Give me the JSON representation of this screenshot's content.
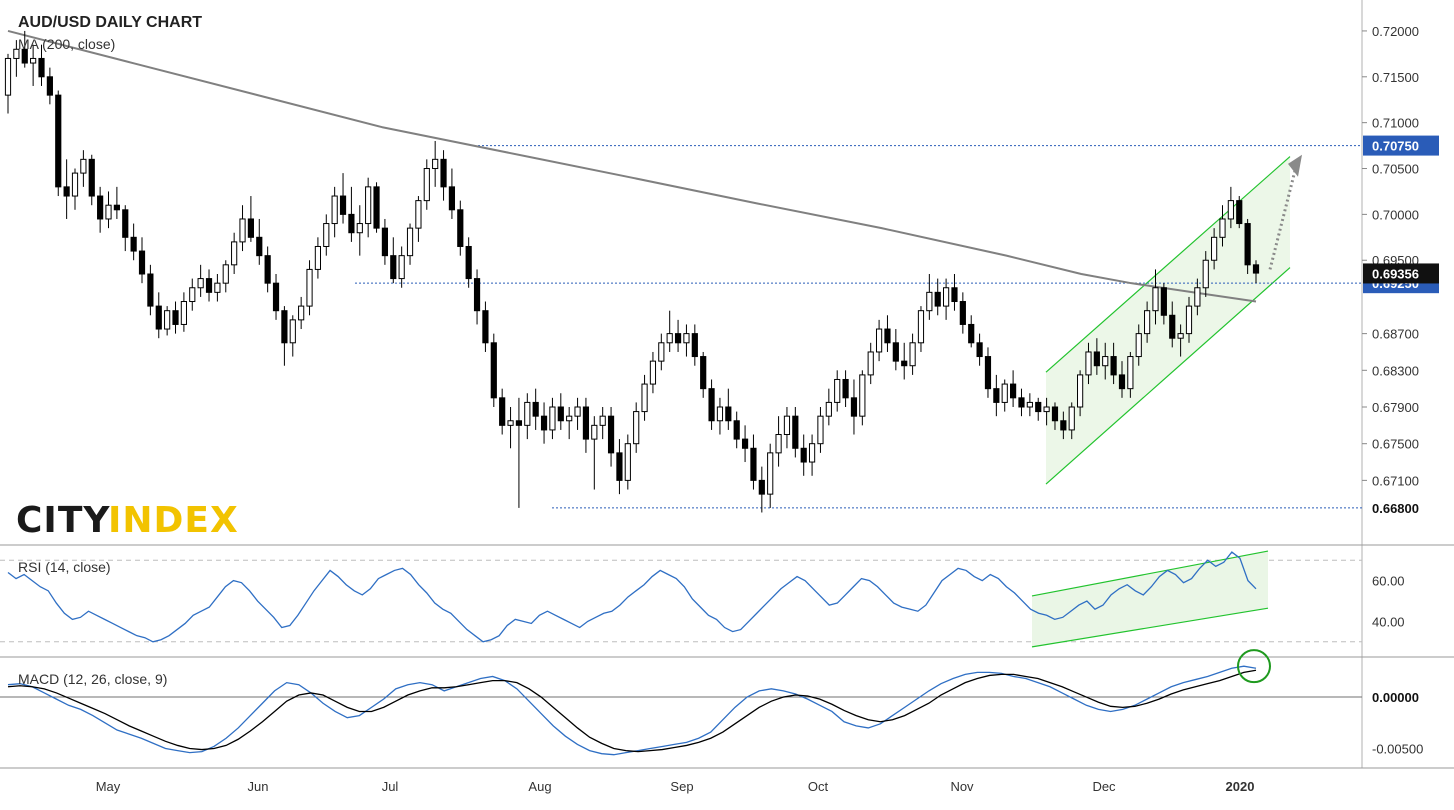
{
  "chart_data": {
    "type": "candlestick",
    "title": "AUD/USD DAILY CHART",
    "ma_label": "MA (200, close)",
    "rsi_label": "RSI (14, close)",
    "macd_label": "MACD (12, 26, close, 9)",
    "brand": {
      "part1": "CITY",
      "part2": "INDEX"
    },
    "x_ticks": [
      "May",
      "Jun",
      "Jul",
      "Aug",
      "Sep",
      "Oct",
      "Nov",
      "Dec",
      "2020"
    ],
    "price_axis": {
      "range": [
        0.6645,
        0.7225
      ],
      "ticks": [
        "0.72000",
        "0.71500",
        "0.71000",
        "0.70500",
        "0.70000",
        "0.69500",
        "0.68700",
        "0.68300",
        "0.67900",
        "0.67500",
        "0.67100"
      ],
      "levels": [
        {
          "label": "0.70750",
          "value": 0.7075
        },
        {
          "label": "0.69250",
          "value": 0.6925
        },
        {
          "label": "0.66800",
          "value": 0.668
        }
      ],
      "last_price": {
        "label": "0.69356",
        "value": 0.69356
      }
    },
    "rsi_axis": {
      "range": [
        25,
        76
      ],
      "ticks": [
        "60.00",
        "40.00"
      ],
      "bands": [
        70,
        30
      ]
    },
    "macd_axis": {
      "range": [
        -0.0066,
        0.0036
      ],
      "ticks": [
        "0.00000",
        "-0.00500"
      ]
    },
    "colors": {
      "candle_up": "#ffffff",
      "candle_down": "#000000",
      "ma": "#808080",
      "rsi": "#2f6fc4",
      "macd": "#2f6fc4",
      "signal": "#000000",
      "level": "#2a5cb8",
      "channel": "#22c32e",
      "channel_fill": "#eaf6e6",
      "badge_blue": "#2a5cb8",
      "brand_yellow": "#f2c300"
    },
    "candles_xy": [
      [
        0.713,
        0.7175,
        0.711,
        0.717
      ],
      [
        0.717,
        0.719,
        0.715,
        0.718
      ],
      [
        0.718,
        0.72,
        0.716,
        0.7165
      ],
      [
        0.7165,
        0.7185,
        0.714,
        0.717
      ],
      [
        0.717,
        0.7185,
        0.714,
        0.715
      ],
      [
        0.715,
        0.716,
        0.712,
        0.713
      ],
      [
        0.713,
        0.7135,
        0.702,
        0.703
      ],
      [
        0.703,
        0.706,
        0.6995,
        0.702
      ],
      [
        0.702,
        0.705,
        0.7005,
        0.7045
      ],
      [
        0.7045,
        0.707,
        0.703,
        0.706
      ],
      [
        0.706,
        0.7065,
        0.701,
        0.702
      ],
      [
        0.702,
        0.703,
        0.698,
        0.6995
      ],
      [
        0.6995,
        0.7025,
        0.6985,
        0.701
      ],
      [
        0.701,
        0.703,
        0.6995,
        0.7005
      ],
      [
        0.7005,
        0.701,
        0.696,
        0.6975
      ],
      [
        0.6975,
        0.699,
        0.695,
        0.696
      ],
      [
        0.696,
        0.6975,
        0.6925,
        0.6935
      ],
      [
        0.6935,
        0.6945,
        0.689,
        0.69
      ],
      [
        0.69,
        0.6915,
        0.6865,
        0.6875
      ],
      [
        0.6875,
        0.69,
        0.6868,
        0.6895
      ],
      [
        0.6895,
        0.6905,
        0.687,
        0.688
      ],
      [
        0.688,
        0.6915,
        0.6872,
        0.6905
      ],
      [
        0.6905,
        0.693,
        0.6895,
        0.692
      ],
      [
        0.692,
        0.6945,
        0.691,
        0.693
      ],
      [
        0.693,
        0.694,
        0.6905,
        0.6915
      ],
      [
        0.6915,
        0.6935,
        0.6905,
        0.6925
      ],
      [
        0.6925,
        0.695,
        0.6915,
        0.6945
      ],
      [
        0.6945,
        0.698,
        0.6935,
        0.697
      ],
      [
        0.697,
        0.701,
        0.696,
        0.6995
      ],
      [
        0.6995,
        0.702,
        0.697,
        0.6975
      ],
      [
        0.6975,
        0.6995,
        0.6945,
        0.6955
      ],
      [
        0.6955,
        0.6965,
        0.6915,
        0.6925
      ],
      [
        0.6925,
        0.6935,
        0.6885,
        0.6895
      ],
      [
        0.6895,
        0.69,
        0.6835,
        0.686
      ],
      [
        0.686,
        0.689,
        0.6845,
        0.6885
      ],
      [
        0.6885,
        0.691,
        0.6875,
        0.69
      ],
      [
        0.69,
        0.695,
        0.689,
        0.694
      ],
      [
        0.694,
        0.6975,
        0.693,
        0.6965
      ],
      [
        0.6965,
        0.7,
        0.6955,
        0.699
      ],
      [
        0.699,
        0.703,
        0.6975,
        0.702
      ],
      [
        0.702,
        0.7045,
        0.699,
        0.7
      ],
      [
        0.7,
        0.703,
        0.697,
        0.698
      ],
      [
        0.698,
        0.701,
        0.6955,
        0.699
      ],
      [
        0.699,
        0.704,
        0.6975,
        0.703
      ],
      [
        0.703,
        0.7035,
        0.698,
        0.6985
      ],
      [
        0.6985,
        0.6995,
        0.6945,
        0.6955
      ],
      [
        0.6955,
        0.6975,
        0.6925,
        0.693
      ],
      [
        0.693,
        0.6965,
        0.692,
        0.6955
      ],
      [
        0.6955,
        0.699,
        0.6945,
        0.6985
      ],
      [
        0.6985,
        0.702,
        0.697,
        0.7015
      ],
      [
        0.7015,
        0.706,
        0.7005,
        0.705
      ],
      [
        0.705,
        0.708,
        0.703,
        0.706
      ],
      [
        0.706,
        0.707,
        0.7015,
        0.703
      ],
      [
        0.703,
        0.705,
        0.6995,
        0.7005
      ],
      [
        0.7005,
        0.7015,
        0.6955,
        0.6965
      ],
      [
        0.6965,
        0.6975,
        0.692,
        0.693
      ],
      [
        0.693,
        0.694,
        0.688,
        0.6895
      ],
      [
        0.6895,
        0.6905,
        0.685,
        0.686
      ],
      [
        0.686,
        0.687,
        0.679,
        0.68
      ],
      [
        0.68,
        0.681,
        0.676,
        0.677
      ],
      [
        0.677,
        0.679,
        0.6745,
        0.6775
      ],
      [
        0.6775,
        0.68,
        0.668,
        0.677
      ],
      [
        0.677,
        0.6805,
        0.6755,
        0.6795
      ],
      [
        0.6795,
        0.681,
        0.6765,
        0.678
      ],
      [
        0.678,
        0.6795,
        0.675,
        0.6765
      ],
      [
        0.6765,
        0.68,
        0.6755,
        0.679
      ],
      [
        0.679,
        0.6805,
        0.6765,
        0.6775
      ],
      [
        0.6775,
        0.679,
        0.6755,
        0.678
      ],
      [
        0.678,
        0.68,
        0.6765,
        0.679
      ],
      [
        0.679,
        0.68,
        0.674,
        0.6755
      ],
      [
        0.6755,
        0.678,
        0.67,
        0.677
      ],
      [
        0.677,
        0.679,
        0.6755,
        0.678
      ],
      [
        0.678,
        0.679,
        0.6725,
        0.674
      ],
      [
        0.674,
        0.6755,
        0.6695,
        0.671
      ],
      [
        0.671,
        0.676,
        0.67,
        0.675
      ],
      [
        0.675,
        0.6795,
        0.674,
        0.6785
      ],
      [
        0.6785,
        0.6825,
        0.6775,
        0.6815
      ],
      [
        0.6815,
        0.685,
        0.6805,
        0.684
      ],
      [
        0.684,
        0.687,
        0.683,
        0.686
      ],
      [
        0.686,
        0.6895,
        0.685,
        0.687
      ],
      [
        0.687,
        0.6885,
        0.685,
        0.686
      ],
      [
        0.686,
        0.688,
        0.6845,
        0.687
      ],
      [
        0.687,
        0.688,
        0.6835,
        0.6845
      ],
      [
        0.6845,
        0.685,
        0.68,
        0.681
      ],
      [
        0.681,
        0.682,
        0.6765,
        0.6775
      ],
      [
        0.6775,
        0.68,
        0.676,
        0.679
      ],
      [
        0.679,
        0.681,
        0.6765,
        0.6775
      ],
      [
        0.6775,
        0.6785,
        0.6745,
        0.6755
      ],
      [
        0.6755,
        0.677,
        0.673,
        0.6745
      ],
      [
        0.6745,
        0.676,
        0.67,
        0.671
      ],
      [
        0.671,
        0.6725,
        0.6675,
        0.6695
      ],
      [
        0.6695,
        0.675,
        0.668,
        0.674
      ],
      [
        0.674,
        0.678,
        0.6725,
        0.676
      ],
      [
        0.676,
        0.679,
        0.6745,
        0.678
      ],
      [
        0.678,
        0.679,
        0.6735,
        0.6745
      ],
      [
        0.6745,
        0.676,
        0.6715,
        0.673
      ],
      [
        0.673,
        0.676,
        0.6715,
        0.675
      ],
      [
        0.675,
        0.679,
        0.674,
        0.678
      ],
      [
        0.678,
        0.681,
        0.677,
        0.6795
      ],
      [
        0.6795,
        0.683,
        0.6785,
        0.682
      ],
      [
        0.682,
        0.683,
        0.679,
        0.68
      ],
      [
        0.68,
        0.682,
        0.676,
        0.678
      ],
      [
        0.678,
        0.683,
        0.677,
        0.6825
      ],
      [
        0.6825,
        0.686,
        0.6815,
        0.685
      ],
      [
        0.685,
        0.6885,
        0.684,
        0.6875
      ],
      [
        0.6875,
        0.689,
        0.685,
        0.686
      ],
      [
        0.686,
        0.6875,
        0.683,
        0.684
      ],
      [
        0.684,
        0.686,
        0.682,
        0.6835
      ],
      [
        0.6835,
        0.687,
        0.6825,
        0.686
      ],
      [
        0.686,
        0.69,
        0.685,
        0.6895
      ],
      [
        0.6895,
        0.6935,
        0.6885,
        0.6915
      ],
      [
        0.6915,
        0.693,
        0.689,
        0.69
      ],
      [
        0.69,
        0.693,
        0.6885,
        0.692
      ],
      [
        0.692,
        0.6935,
        0.6895,
        0.6905
      ],
      [
        0.6905,
        0.6915,
        0.687,
        0.688
      ],
      [
        0.688,
        0.689,
        0.6855,
        0.686
      ],
      [
        0.686,
        0.687,
        0.6835,
        0.6845
      ],
      [
        0.6845,
        0.6855,
        0.68,
        0.681
      ],
      [
        0.681,
        0.6825,
        0.678,
        0.6795
      ],
      [
        0.6795,
        0.682,
        0.6785,
        0.6815
      ],
      [
        0.6815,
        0.683,
        0.679,
        0.68
      ],
      [
        0.68,
        0.681,
        0.678,
        0.679
      ],
      [
        0.679,
        0.6805,
        0.678,
        0.6795
      ],
      [
        0.6795,
        0.68,
        0.6775,
        0.6785
      ],
      [
        0.6785,
        0.68,
        0.677,
        0.679
      ],
      [
        0.679,
        0.6795,
        0.6765,
        0.6775
      ],
      [
        0.6775,
        0.6785,
        0.6755,
        0.6765
      ],
      [
        0.6765,
        0.6795,
        0.6755,
        0.679
      ],
      [
        0.679,
        0.683,
        0.678,
        0.6825
      ],
      [
        0.6825,
        0.686,
        0.6815,
        0.685
      ],
      [
        0.685,
        0.6865,
        0.6825,
        0.6835
      ],
      [
        0.6835,
        0.686,
        0.682,
        0.6845
      ],
      [
        0.6845,
        0.686,
        0.6815,
        0.6825
      ],
      [
        0.6825,
        0.684,
        0.68,
        0.681
      ],
      [
        0.681,
        0.685,
        0.68,
        0.6845
      ],
      [
        0.6845,
        0.688,
        0.6835,
        0.687
      ],
      [
        0.687,
        0.6905,
        0.686,
        0.6895
      ],
      [
        0.6895,
        0.694,
        0.688,
        0.692
      ],
      [
        0.692,
        0.6925,
        0.688,
        0.689
      ],
      [
        0.689,
        0.6905,
        0.6855,
        0.6865
      ],
      [
        0.6865,
        0.688,
        0.6845,
        0.687
      ],
      [
        0.687,
        0.691,
        0.686,
        0.69
      ],
      [
        0.69,
        0.693,
        0.689,
        0.692
      ],
      [
        0.692,
        0.696,
        0.691,
        0.695
      ],
      [
        0.695,
        0.6985,
        0.694,
        0.6975
      ],
      [
        0.6975,
        0.701,
        0.6965,
        0.6995
      ],
      [
        0.6995,
        0.703,
        0.6985,
        0.7015
      ],
      [
        0.7015,
        0.702,
        0.6985,
        0.699
      ],
      [
        0.699,
        0.6995,
        0.6935,
        0.6945
      ],
      [
        0.6945,
        0.695,
        0.6925,
        0.6936
      ]
    ],
    "ma200": [
      [
        0.0,
        0.72
      ],
      [
        0.1,
        0.7165
      ],
      [
        0.2,
        0.713
      ],
      [
        0.3,
        0.7095
      ],
      [
        0.42,
        0.7062
      ],
      [
        0.5,
        0.704
      ],
      [
        0.6,
        0.7012
      ],
      [
        0.7,
        0.6985
      ],
      [
        0.8,
        0.6955
      ],
      [
        0.86,
        0.6935
      ],
      [
        0.9,
        0.6925
      ],
      [
        0.95,
        0.6915
      ],
      [
        1.0,
        0.6905
      ]
    ],
    "rsi": [
      64,
      61,
      63,
      60,
      57,
      55,
      49,
      44,
      41,
      42,
      45,
      43,
      41,
      39,
      37,
      35,
      33,
      32,
      30,
      31,
      33,
      36,
      39,
      43,
      45,
      47,
      52,
      57,
      60,
      59,
      55,
      50,
      46,
      42,
      37,
      38,
      43,
      49,
      55,
      60,
      65,
      62,
      58,
      55,
      53,
      56,
      61,
      63,
      65,
      66,
      63,
      58,
      54,
      49,
      46,
      44,
      40,
      36,
      33,
      30,
      31,
      33,
      38,
      41,
      40,
      39,
      43,
      45,
      43,
      41,
      39,
      37,
      40,
      42,
      44,
      45,
      48,
      52,
      55,
      58,
      62,
      65,
      63,
      61,
      57,
      51,
      47,
      43,
      41,
      37,
      35,
      36,
      40,
      44,
      48,
      52,
      56,
      59,
      62,
      60,
      56,
      52,
      48,
      49,
      53,
      57,
      61,
      60,
      57,
      53,
      49,
      47,
      46,
      45,
      48,
      54,
      60,
      63,
      66,
      65,
      62,
      60,
      63,
      61,
      57,
      54,
      50,
      46,
      44,
      43,
      41,
      42,
      45,
      48,
      50,
      46,
      48,
      53,
      56,
      58,
      55,
      53,
      57,
      62,
      65,
      63,
      59,
      61,
      66,
      70,
      67,
      69,
      74,
      71,
      60,
      56
    ],
    "macd": [
      0.0012,
      0.0013,
      0.001,
      0.0004,
      -0.0002,
      -0.0008,
      -0.0012,
      -0.0018,
      -0.0025,
      -0.0032,
      -0.0036,
      -0.004,
      -0.0045,
      -0.005,
      -0.0052,
      -0.0054,
      -0.0053,
      -0.0048,
      -0.004,
      -0.003,
      -0.0018,
      -0.0006,
      0.0006,
      0.0014,
      0.0012,
      0.0004,
      -0.0006,
      -0.0014,
      -0.002,
      -0.0018,
      -0.001,
      -0.0002,
      0.0008,
      0.0012,
      0.0014,
      0.0012,
      0.0006,
      0.001,
      0.0014,
      0.0018,
      0.002,
      0.0016,
      0.0008,
      -0.0004,
      -0.0016,
      -0.0028,
      -0.0038,
      -0.0046,
      -0.0052,
      -0.0055,
      -0.0056,
      -0.0054,
      -0.0052,
      -0.005,
      -0.0048,
      -0.0046,
      -0.0044,
      -0.004,
      -0.0034,
      -0.0022,
      -0.001,
      0.0,
      0.0006,
      0.0008,
      0.0006,
      0.0003,
      -0.0002,
      -0.0008,
      -0.0014,
      -0.0024,
      -0.0028,
      -0.003,
      -0.0026,
      -0.0018,
      -0.001,
      -0.0002,
      0.0006,
      0.0013,
      0.0018,
      0.0022,
      0.0024,
      0.0024,
      0.0023,
      0.002,
      0.0018,
      0.0014,
      0.001,
      0.0004,
      -0.0002,
      -0.0008,
      -0.0012,
      -0.0014,
      -0.0012,
      -0.0008,
      -0.0002,
      0.0004,
      0.001,
      0.0014,
      0.0017,
      0.002,
      0.0024,
      0.0028,
      0.003,
      0.0028
    ],
    "macd_signal": [
      0.001,
      0.0011,
      0.001,
      0.0008,
      0.0004,
      -0.0001,
      -0.0006,
      -0.0011,
      -0.0016,
      -0.0022,
      -0.0028,
      -0.0033,
      -0.0038,
      -0.0043,
      -0.0047,
      -0.005,
      -0.0051,
      -0.005,
      -0.0047,
      -0.0041,
      -0.0033,
      -0.0024,
      -0.0014,
      -0.0004,
      0.0002,
      0.0004,
      0.0002,
      -0.0004,
      -0.001,
      -0.0014,
      -0.0014,
      -0.001,
      -0.0004,
      0.0002,
      0.0006,
      0.0009,
      0.0009,
      0.001,
      0.0012,
      0.0014,
      0.0016,
      0.0016,
      0.0014,
      0.0008,
      0.0,
      -0.001,
      -0.002,
      -0.003,
      -0.0039,
      -0.0045,
      -0.005,
      -0.0052,
      -0.0053,
      -0.0052,
      -0.0051,
      -0.0049,
      -0.0047,
      -0.0044,
      -0.004,
      -0.0034,
      -0.0026,
      -0.0018,
      -0.001,
      -0.0004,
      0.0,
      0.0002,
      0.0001,
      -0.0002,
      -0.0007,
      -0.0013,
      -0.0018,
      -0.0022,
      -0.0024,
      -0.0022,
      -0.0018,
      -0.0012,
      -0.0006,
      0.0002,
      0.0008,
      0.0014,
      0.0018,
      0.0021,
      0.0022,
      0.0022,
      0.002,
      0.0018,
      0.0014,
      0.001,
      0.0005,
      0.0,
      -0.0005,
      -0.0009,
      -0.001,
      -0.0009,
      -0.0006,
      -0.0002,
      0.0003,
      0.0007,
      0.001,
      0.0013,
      0.0016,
      0.002,
      0.0024,
      0.0026
    ]
  }
}
